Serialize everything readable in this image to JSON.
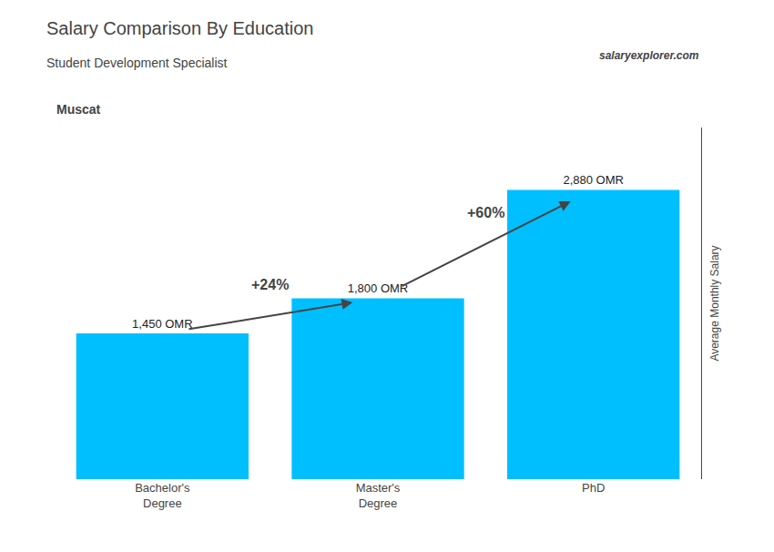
{
  "chart_data": {
    "type": "bar",
    "title": "Salary Comparison By Education",
    "subtitle": "Student Development Specialist",
    "ylabel": "Average Monthly Salary",
    "categories": [
      "Bachelor's\nDegree",
      "Master's\nDegree",
      "PhD"
    ],
    "values": [
      1450,
      1800,
      2880
    ],
    "value_labels": [
      "1,450 OMR",
      "1,800 OMR",
      "2,880 OMR"
    ],
    "data_labels": true,
    "color": "#00BFFF",
    "ylim": [
      0,
      3500
    ],
    "tick_labels": "x",
    "grid": false,
    "annotations": [
      {
        "text": "+24%",
        "from": 0,
        "to": 1
      },
      {
        "text": "+60%",
        "from": 1,
        "to": 2
      },
      {
        "text": "Muscat"
      },
      {
        "text": "salaryexplorer.com"
      }
    ]
  }
}
